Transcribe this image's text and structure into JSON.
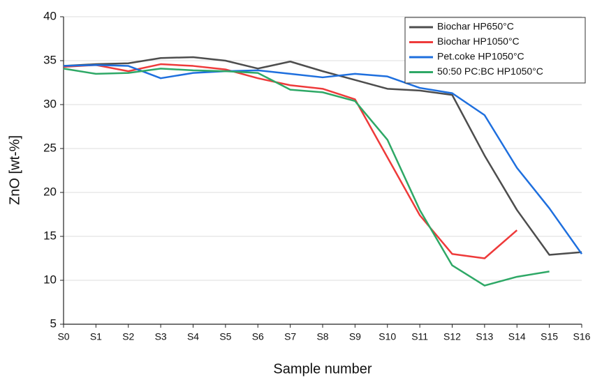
{
  "chart_data": {
    "type": "line",
    "x_label": "Sample number",
    "y_label": "ZnO [wt-%]",
    "categories": [
      "S0",
      "S1",
      "S2",
      "S3",
      "S4",
      "S5",
      "S6",
      "S7",
      "S8",
      "S9",
      "S10",
      "S11",
      "S12",
      "S13",
      "S14",
      "S15",
      "S16"
    ],
    "series": [
      {
        "name": "Biochar HP650°C",
        "color": "#4d4d4d",
        "values": [
          34.4,
          34.6,
          34.7,
          35.3,
          35.4,
          35.0,
          34.1,
          34.9,
          33.8,
          32.8,
          31.8,
          31.6,
          31.1,
          24.2,
          18.0,
          12.9,
          13.2
        ]
      },
      {
        "name": "Biochar HP1050°C",
        "color": "#ee3a3a",
        "values": [
          34.3,
          34.5,
          33.8,
          34.6,
          34.4,
          34.0,
          33.0,
          32.2,
          31.8,
          30.6,
          24.0,
          17.4,
          13.0,
          12.5,
          15.7,
          null,
          null
        ]
      },
      {
        "name": "Pet.coke HP1050°C",
        "color": "#1e6fde",
        "values": [
          34.4,
          34.5,
          34.4,
          33.0,
          33.6,
          33.8,
          33.9,
          33.5,
          33.1,
          33.5,
          33.2,
          31.9,
          31.3,
          28.8,
          22.8,
          18.2,
          13.0
        ]
      },
      {
        "name": "50:50 PC:BC HP1050°C",
        "color": "#2ea866",
        "values": [
          34.1,
          33.5,
          33.6,
          34.1,
          33.9,
          33.8,
          33.6,
          31.7,
          31.4,
          30.4,
          26.0,
          18.0,
          11.7,
          9.4,
          10.4,
          11.0,
          null
        ]
      }
    ],
    "ylim": [
      5,
      40
    ],
    "yticks": [
      5,
      10,
      15,
      20,
      25,
      30,
      35,
      40
    ],
    "grid": true,
    "legend": "upper right"
  }
}
